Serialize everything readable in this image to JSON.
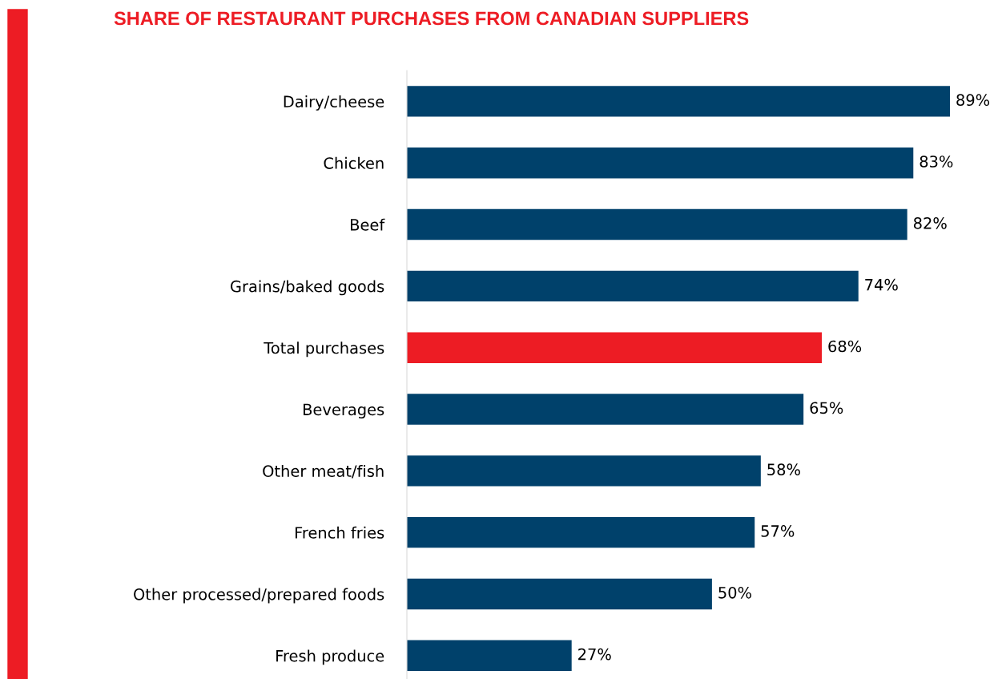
{
  "chart_data": {
    "type": "bar",
    "orientation": "horizontal",
    "title": "SHARE OF RESTAURANT PURCHASES FROM CANADIAN SUPPLIERS",
    "categories": [
      "Dairy/cheese",
      "Chicken",
      "Beef",
      "Grains/baked goods",
      "Total purchases",
      "Beverages",
      "Other meat/fish",
      "French fries",
      "Other processed/prepared foods",
      "Fresh produce"
    ],
    "values": [
      89,
      83,
      82,
      74,
      68,
      65,
      58,
      57,
      50,
      27
    ],
    "value_labels": [
      "89%",
      "83%",
      "82%",
      "74%",
      "68%",
      "65%",
      "58%",
      "57%",
      "50%",
      "27%"
    ],
    "colors": [
      "#00416b",
      "#00416b",
      "#00416b",
      "#00416b",
      "#ed1c24",
      "#00416b",
      "#00416b",
      "#00416b",
      "#00416b",
      "#00416b"
    ],
    "grid": false,
    "legend": false
  }
}
